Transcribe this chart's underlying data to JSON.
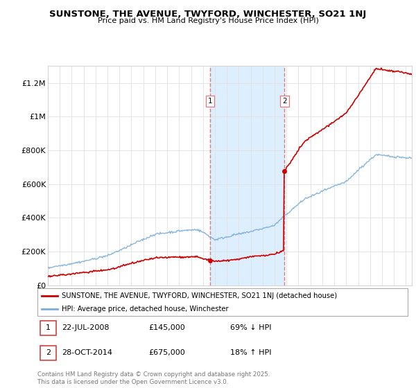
{
  "title": "SUNSTONE, THE AVENUE, TWYFORD, WINCHESTER, SO21 1NJ",
  "subtitle": "Price paid vs. HM Land Registry's House Price Index (HPI)",
  "yticks": [
    0,
    200000,
    400000,
    600000,
    800000,
    1000000,
    1200000
  ],
  "ytick_labels": [
    "£0",
    "£200K",
    "£400K",
    "£600K",
    "£800K",
    "£1M",
    "£1.2M"
  ],
  "sale1_t": 2008.583,
  "sale1_price": 145000,
  "sale2_t": 2014.833,
  "sale2_price": 675000,
  "line_color_red": "#cc0000",
  "line_color_blue": "#7aaddb",
  "shade_color": "#ddeeff",
  "vline_color": "#e87878",
  "legend1": "SUNSTONE, THE AVENUE, TWYFORD, WINCHESTER, SO21 1NJ (detached house)",
  "legend2": "HPI: Average price, detached house, Winchester",
  "footnote": "Contains HM Land Registry data © Crown copyright and database right 2025.\nThis data is licensed under the Open Government Licence v3.0.",
  "background_color": "#ffffff",
  "grid_color": "#e0e0e0",
  "xmin": 1995,
  "xmax": 2025.5,
  "ymin": 0,
  "ymax": 1300000
}
